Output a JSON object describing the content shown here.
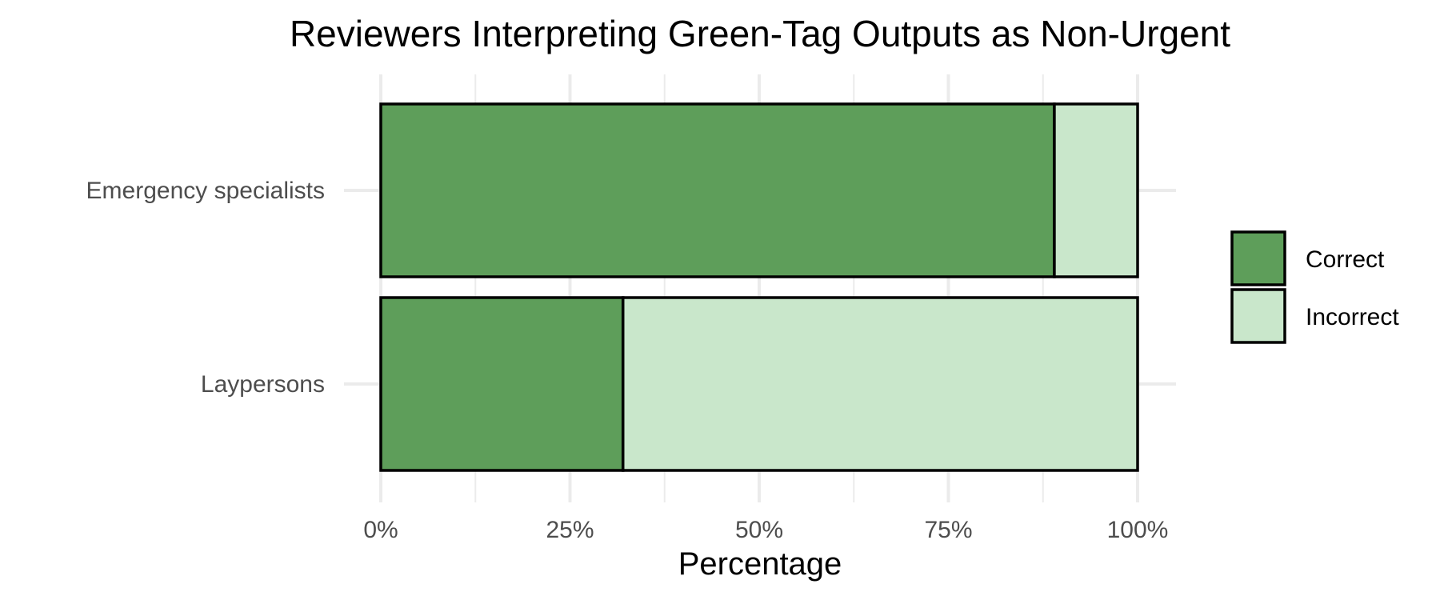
{
  "chart_data": {
    "type": "bar",
    "orientation": "horizontal",
    "stacked": true,
    "title": "Reviewers Interpreting Green-Tag Outputs as Non-Urgent",
    "xlabel": "Percentage",
    "ylabel": "",
    "categories": [
      "Emergency specialists",
      "Laypersons"
    ],
    "series": [
      {
        "name": "Correct",
        "values": [
          89,
          32
        ],
        "color": "#5e9e5a"
      },
      {
        "name": "Incorrect",
        "values": [
          11,
          68
        ],
        "color": "#c9e7cb"
      }
    ],
    "xlim": [
      0,
      100
    ],
    "x_ticks": [
      0,
      25,
      50,
      75,
      100
    ],
    "x_tick_labels": [
      "0%",
      "25%",
      "50%",
      "75%",
      "100%"
    ],
    "grid": true,
    "legend_position": "right"
  }
}
